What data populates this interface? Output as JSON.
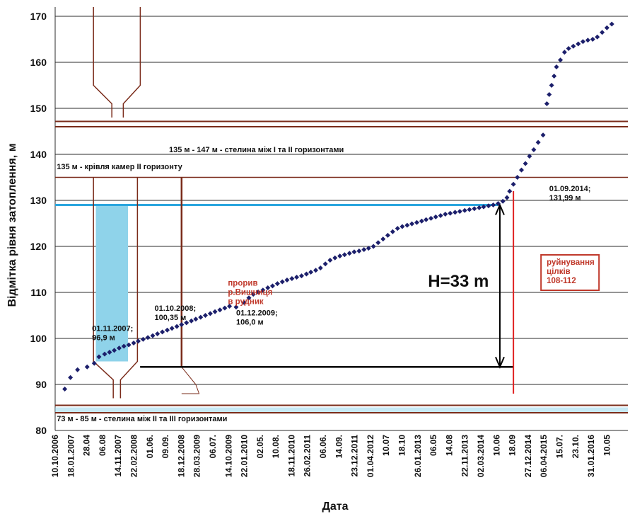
{
  "chart_data": {
    "type": "scatter",
    "xlabel": "Дата",
    "ylabel": "Відмітка рівня затоплення, м",
    "ylim": [
      80,
      172
    ],
    "xlim": [
      "2006-10-10",
      "2016-09-20"
    ],
    "y_ticks": [
      "80",
      "90",
      "100",
      "110",
      "120",
      "130",
      "140",
      "150",
      "160",
      "170"
    ],
    "x_ticks": [
      {
        "label": "10.10.2006",
        "date": "2006-10-10"
      },
      {
        "label": "18.01.2007",
        "date": "2007-01-18"
      },
      {
        "label": "28.04",
        "date": "2007-04-28"
      },
      {
        "label": "06.08",
        "date": "2007-08-06"
      },
      {
        "label": "14.11.2007",
        "date": "2007-11-14"
      },
      {
        "label": "22.02.2008",
        "date": "2008-02-22"
      },
      {
        "label": "01.06.",
        "date": "2008-06-01"
      },
      {
        "label": "09.09.",
        "date": "2008-09-09"
      },
      {
        "label": "18.12.2008",
        "date": "2008-12-18"
      },
      {
        "label": "28.03.2009",
        "date": "2009-03-28"
      },
      {
        "label": "06.07.",
        "date": "2009-07-06"
      },
      {
        "label": "14.10.2009",
        "date": "2009-10-14"
      },
      {
        "label": "22.01.2010",
        "date": "2010-01-22"
      },
      {
        "label": "02.05.",
        "date": "2010-05-02"
      },
      {
        "label": "10.08.",
        "date": "2010-08-10"
      },
      {
        "label": "18.11.2010",
        "date": "2010-11-18"
      },
      {
        "label": "26.02.2011",
        "date": "2011-02-26"
      },
      {
        "label": "06.06.",
        "date": "2011-06-06"
      },
      {
        "label": "14.09.",
        "date": "2011-09-14"
      },
      {
        "label": "23.12.2011",
        "date": "2011-12-23"
      },
      {
        "label": "01.04.2012",
        "date": "2012-04-01"
      },
      {
        "label": "10.07",
        "date": "2012-07-10"
      },
      {
        "label": "18.10",
        "date": "2012-10-18"
      },
      {
        "label": "26.01.2013",
        "date": "2013-01-26"
      },
      {
        "label": "06.05",
        "date": "2013-05-06"
      },
      {
        "label": "14.08",
        "date": "2013-08-14"
      },
      {
        "label": "22.11.2013",
        "date": "2013-11-22"
      },
      {
        "label": "02.03.2014",
        "date": "2014-03-02"
      },
      {
        "label": "10.06",
        "date": "2014-06-10"
      },
      {
        "label": "18.09",
        "date": "2014-09-18"
      },
      {
        "label": "27.12.2014",
        "date": "2014-12-27"
      },
      {
        "label": "06.04.2015",
        "date": "2015-04-06"
      },
      {
        "label": "15.07.",
        "date": "2015-07-15"
      },
      {
        "label": "23.10.",
        "date": "2015-10-23"
      },
      {
        "label": "31.01.2016",
        "date": "2016-01-31"
      },
      {
        "label": "10.05",
        "date": "2016-05-10"
      }
    ],
    "grid": true,
    "series": [
      {
        "color": "#1c1f6b",
        "points": [
          [
            "2006-12-10",
            89.0
          ],
          [
            "2007-01-15",
            91.5
          ],
          [
            "2007-03-01",
            93.2
          ],
          [
            "2007-05-01",
            93.8
          ],
          [
            "2007-06-15",
            94.6
          ],
          [
            "2007-07-15",
            96.0
          ],
          [
            "2007-08-20",
            96.6
          ],
          [
            "2007-09-20",
            97.0
          ],
          [
            "2007-10-20",
            97.4
          ],
          [
            "2007-11-20",
            97.9
          ],
          [
            "2007-12-20",
            98.3
          ],
          [
            "2008-01-20",
            98.6
          ],
          [
            "2008-02-20",
            99.0
          ],
          [
            "2008-03-20",
            99.4
          ],
          [
            "2008-04-20",
            99.8
          ],
          [
            "2008-05-20",
            100.2
          ],
          [
            "2008-06-20",
            100.6
          ],
          [
            "2008-07-20",
            101.0
          ],
          [
            "2008-08-20",
            101.4
          ],
          [
            "2008-09-20",
            101.8
          ],
          [
            "2008-10-20",
            102.2
          ],
          [
            "2008-11-20",
            102.6
          ],
          [
            "2008-12-20",
            103.0
          ],
          [
            "2009-01-20",
            103.4
          ],
          [
            "2009-02-20",
            103.8
          ],
          [
            "2009-03-20",
            104.2
          ],
          [
            "2009-04-20",
            104.6
          ],
          [
            "2009-05-20",
            105.0
          ],
          [
            "2009-06-20",
            105.4
          ],
          [
            "2009-07-20",
            105.8
          ],
          [
            "2009-08-20",
            106.2
          ],
          [
            "2009-09-20",
            106.6
          ],
          [
            "2009-10-20",
            107.0
          ],
          [
            "2009-12-01",
            106.8
          ],
          [
            "2010-01-20",
            107.8
          ],
          [
            "2010-02-20",
            108.8
          ],
          [
            "2010-03-20",
            109.6
          ],
          [
            "2010-04-20",
            110.1
          ],
          [
            "2010-05-20",
            110.5
          ],
          [
            "2010-06-20",
            111.0
          ],
          [
            "2010-07-20",
            111.4
          ],
          [
            "2010-08-20",
            111.9
          ],
          [
            "2010-09-20",
            112.3
          ],
          [
            "2010-10-20",
            112.7
          ],
          [
            "2010-11-20",
            113.0
          ],
          [
            "2010-12-20",
            113.3
          ],
          [
            "2011-01-20",
            113.6
          ],
          [
            "2011-02-20",
            114.0
          ],
          [
            "2011-03-20",
            114.4
          ],
          [
            "2011-04-20",
            114.8
          ],
          [
            "2011-05-20",
            115.3
          ],
          [
            "2011-06-20",
            116.2
          ],
          [
            "2011-07-20",
            117.0
          ],
          [
            "2011-08-20",
            117.5
          ],
          [
            "2011-09-20",
            117.9
          ],
          [
            "2011-10-20",
            118.2
          ],
          [
            "2011-11-20",
            118.5
          ],
          [
            "2011-12-20",
            118.8
          ],
          [
            "2012-01-20",
            119.0
          ],
          [
            "2012-02-20",
            119.3
          ],
          [
            "2012-03-20",
            119.6
          ],
          [
            "2012-04-20",
            120.0
          ],
          [
            "2012-05-20",
            120.8
          ],
          [
            "2012-06-20",
            121.6
          ],
          [
            "2012-07-20",
            122.4
          ],
          [
            "2012-08-20",
            123.2
          ],
          [
            "2012-09-20",
            123.9
          ],
          [
            "2012-10-20",
            124.3
          ],
          [
            "2012-11-20",
            124.6
          ],
          [
            "2012-12-20",
            124.9
          ],
          [
            "2013-01-20",
            125.2
          ],
          [
            "2013-02-20",
            125.5
          ],
          [
            "2013-03-20",
            125.8
          ],
          [
            "2013-04-20",
            126.1
          ],
          [
            "2013-05-20",
            126.4
          ],
          [
            "2013-06-20",
            126.7
          ],
          [
            "2013-07-20",
            127.0
          ],
          [
            "2013-08-20",
            127.2
          ],
          [
            "2013-09-20",
            127.4
          ],
          [
            "2013-10-20",
            127.6
          ],
          [
            "2013-11-20",
            127.8
          ],
          [
            "2013-12-20",
            128.0
          ],
          [
            "2014-01-20",
            128.2
          ],
          [
            "2014-02-20",
            128.4
          ],
          [
            "2014-03-20",
            128.6
          ],
          [
            "2014-04-20",
            128.8
          ],
          [
            "2014-05-20",
            129.0
          ],
          [
            "2014-06-20",
            129.3
          ],
          [
            "2014-07-20",
            129.8
          ],
          [
            "2014-08-15",
            130.6
          ],
          [
            "2014-09-01",
            131.99
          ],
          [
            "2014-09-25",
            133.5
          ],
          [
            "2014-10-20",
            135.0
          ],
          [
            "2014-11-15",
            136.6
          ],
          [
            "2014-12-10",
            138.0
          ],
          [
            "2015-01-05",
            139.6
          ],
          [
            "2015-02-01",
            141.0
          ],
          [
            "2015-03-01",
            142.6
          ],
          [
            "2015-04-01",
            144.2
          ],
          [
            "2015-04-25",
            151.0
          ],
          [
            "2015-05-10",
            153.0
          ],
          [
            "2015-05-25",
            155.0
          ],
          [
            "2015-06-10",
            157.0
          ],
          [
            "2015-06-25",
            159.0
          ],
          [
            "2015-07-20",
            160.5
          ],
          [
            "2015-08-15",
            162.2
          ],
          [
            "2015-09-10",
            163.0
          ],
          [
            "2015-10-10",
            163.5
          ],
          [
            "2015-11-10",
            164.0
          ],
          [
            "2015-12-10",
            164.5
          ],
          [
            "2016-01-10",
            164.8
          ],
          [
            "2016-02-10",
            165.0
          ],
          [
            "2016-03-10",
            165.5
          ],
          [
            "2016-04-10",
            166.5
          ],
          [
            "2016-05-10",
            167.5
          ],
          [
            "2016-06-10",
            168.3
          ]
        ]
      }
    ],
    "reference_levels": {
      "water_level": 129,
      "roof_chambers": 135,
      "pillar_top": 147,
      "pillar_bottom": 135,
      "lower_pillar_top": 85,
      "lower_pillar_bottom": 73
    },
    "annotations": [
      {
        "id": "pillar-1-2",
        "text": "135 м - 147 м - стелина між І та ІІ горизонтами",
        "date": "2008-10-01",
        "y": 140.5
      },
      {
        "id": "roof",
        "text": "135 м - крівля камер ІІ горизонту",
        "date": "2006-10-20",
        "y": 136.8
      },
      {
        "id": "point-2007",
        "lines": [
          "01.11.2007;",
          "96,9 м"
        ],
        "date": "2007-06-01",
        "y": 101.6
      },
      {
        "id": "point-2008",
        "lines": [
          "01.10.2008;",
          "100,35 м"
        ],
        "date": "2008-07-01",
        "y": 106.0
      },
      {
        "id": "breakthrough",
        "lines": [
          "прорив",
          "р.Вишниця",
          "в рудник"
        ],
        "date": "2009-10-10",
        "y": 111.5,
        "red": true
      },
      {
        "id": "point-2009",
        "lines": [
          "01.12.2009;",
          "106,0 м"
        ],
        "date": "2009-12-01",
        "y": 105.0
      },
      {
        "id": "point-2014",
        "lines": [
          "01.09.2014;",
          "131,99 м"
        ],
        "date": "2015-05-10",
        "y": 132.0
      },
      {
        "id": "pillar-2-3",
        "text": "73 м - 85 м - стелина між ІІ та ІІІ горизонтами",
        "date": "2006-10-20",
        "y": 82.0
      },
      {
        "id": "collapse",
        "lines": [
          "руйнування",
          "цілків",
          "108-112"
        ],
        "date": "2015-04-15",
        "y": 116.0,
        "red": true,
        "boxed": true
      },
      {
        "id": "height",
        "text": "H=33 m",
        "date": "2013-04-01",
        "y": 111.2,
        "big": true
      }
    ],
    "delta_h": {
      "date": "2014-07-01",
      "from": 129,
      "to": 93.8
    }
  }
}
